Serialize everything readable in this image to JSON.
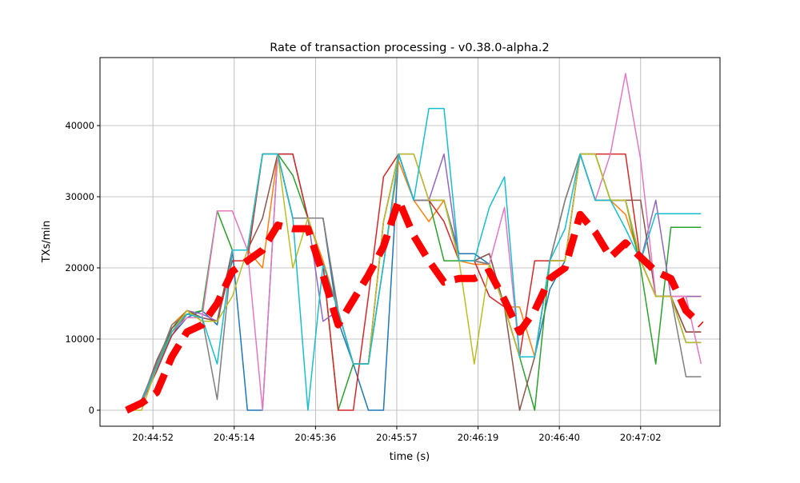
{
  "chart_data": {
    "type": "line",
    "title": "Rate of transaction processing  -  v0.38.0-alpha.2",
    "xlabel": "time (s)",
    "ylabel": "TXs/min",
    "xlim": [
      "20:44:38",
      "20:47:22"
    ],
    "ylim": [
      -2250,
      49550
    ],
    "grid": true,
    "legend": "none",
    "x_ticks": [
      {
        "value": "20:44:52",
        "label": "20:44:52"
      },
      {
        "value": "20:45:13.5",
        "label": "20:45:14"
      },
      {
        "value": "20:45:35",
        "label": "20:45:36"
      },
      {
        "value": "20:45:56.5",
        "label": "20:45:57"
      },
      {
        "value": "20:46:18",
        "label": "20:46:19"
      },
      {
        "value": "20:46:39.5",
        "label": "20:46:40"
      },
      {
        "value": "20:47:01",
        "label": "20:47:02"
      }
    ],
    "y_ticks": [
      {
        "value": 0,
        "label": "0"
      },
      {
        "value": 10000,
        "label": "10000"
      },
      {
        "value": 20000,
        "label": "20000"
      },
      {
        "value": 30000,
        "label": "30000"
      },
      {
        "value": 40000,
        "label": "40000"
      }
    ],
    "x": [
      "20:44:45",
      "20:44:49",
      "20:44:53",
      "20:44:57",
      "20:45:01",
      "20:45:05",
      "20:45:09",
      "20:45:13",
      "20:45:17",
      "20:45:21",
      "20:45:25",
      "20:45:29",
      "20:45:33",
      "20:45:37",
      "20:45:41",
      "20:45:45",
      "20:45:49",
      "20:45:53",
      "20:45:57",
      "20:46:01",
      "20:46:05",
      "20:46:09",
      "20:46:13",
      "20:46:17",
      "20:46:21",
      "20:46:25",
      "20:46:29",
      "20:46:33",
      "20:46:37",
      "20:46:41",
      "20:46:45",
      "20:46:49",
      "20:46:53",
      "20:46:57",
      "20:47:01",
      "20:47:05",
      "20:47:09",
      "20:47:13",
      "20:47:17"
    ],
    "series": [
      {
        "color": "#1f77b4",
        "values": [
          0,
          1000,
          5800,
          10500,
          13000,
          14000,
          12000,
          22500,
          0,
          0,
          36000,
          36000,
          27000,
          27000,
          12500,
          6500,
          0,
          0,
          36000,
          29500,
          29500,
          29500,
          22000,
          22000,
          20500,
          14500,
          7500,
          7500,
          17000,
          21000,
          36000,
          36000,
          29500,
          29500,
          21000,
          16000,
          16000,
          9500,
          9500
        ]
      },
      {
        "color": "#ff7f0e",
        "values": [
          0,
          1500,
          6500,
          12000,
          14000,
          12500,
          12500,
          22500,
          22500,
          20000,
          36000,
          27000,
          27000,
          21000,
          14000,
          6500,
          6500,
          20500,
          35000,
          29500,
          26500,
          29500,
          21000,
          20500,
          20500,
          14500,
          14500,
          7500,
          21000,
          21000,
          36000,
          29500,
          29500,
          27500,
          21000,
          16000,
          16000,
          16000,
          16000
        ]
      },
      {
        "color": "#2ca02c",
        "values": [
          0,
          1200,
          6000,
          11500,
          13500,
          14000,
          28000,
          22500,
          22500,
          36000,
          36000,
          33000,
          27000,
          20500,
          0,
          6500,
          6500,
          26500,
          36000,
          29500,
          29500,
          21000,
          21000,
          21000,
          20500,
          14500,
          7500,
          0,
          21000,
          21000,
          36000,
          36000,
          29500,
          29500,
          20000,
          6500,
          25700,
          25700,
          25700
        ]
      },
      {
        "color": "#d62728",
        "values": [
          0,
          1000,
          5500,
          10500,
          13500,
          13000,
          12500,
          21000,
          21000,
          36000,
          36000,
          36000,
          27000,
          20500,
          0,
          0,
          16000,
          32800,
          36000,
          29500,
          29500,
          26500,
          21000,
          21000,
          16000,
          14500,
          7500,
          21000,
          21000,
          21000,
          36000,
          36000,
          36000,
          36000,
          21000,
          16000,
          16000,
          11000,
          11000
        ]
      },
      {
        "color": "#9467bd",
        "values": [
          0,
          1200,
          6000,
          11000,
          14000,
          13500,
          12500,
          22500,
          22500,
          36000,
          36000,
          27000,
          27000,
          12500,
          14000,
          6500,
          6500,
          26500,
          36000,
          36000,
          29500,
          36000,
          21000,
          21000,
          22000,
          14500,
          7500,
          7500,
          21000,
          21000,
          36000,
          29500,
          29500,
          29500,
          21000,
          29500,
          16000,
          16000,
          16000
        ]
      },
      {
        "color": "#8c564b",
        "values": [
          0,
          1200,
          7000,
          11500,
          14000,
          13000,
          12500,
          22500,
          22500,
          27000,
          36000,
          27000,
          27000,
          27000,
          14000,
          6500,
          6500,
          26500,
          36000,
          29500,
          29500,
          29500,
          21000,
          21000,
          22000,
          14500,
          0,
          7500,
          21000,
          29500,
          36000,
          29500,
          29500,
          29500,
          29500,
          16000,
          16000,
          11000,
          11000
        ]
      },
      {
        "color": "#e377c2",
        "values": [
          0,
          1000,
          6000,
          11000,
          13000,
          13000,
          28000,
          28000,
          22500,
          0,
          36000,
          27000,
          27000,
          20500,
          14000,
          6500,
          6500,
          26500,
          36000,
          29500,
          29500,
          29500,
          21000,
          21000,
          20500,
          28500,
          7500,
          7500,
          21000,
          21000,
          36000,
          29500,
          36000,
          47300,
          35200,
          16000,
          16000,
          16000,
          6500
        ]
      },
      {
        "color": "#7f7f7f",
        "values": [
          0,
          1500,
          6500,
          12000,
          13500,
          13000,
          1500,
          22500,
          22500,
          36000,
          36000,
          27000,
          27000,
          27000,
          14000,
          6500,
          6500,
          20500,
          36000,
          29500,
          29500,
          29500,
          21000,
          21000,
          20500,
          14500,
          7500,
          7500,
          21000,
          29500,
          36000,
          29500,
          29500,
          29500,
          21000,
          16000,
          16000,
          4700,
          4700
        ]
      },
      {
        "color": "#bcbd22",
        "values": [
          0,
          0,
          6000,
          11000,
          14000,
          12500,
          12500,
          16000,
          22500,
          36000,
          36000,
          20000,
          27000,
          20500,
          14000,
          6500,
          6500,
          26500,
          36000,
          36000,
          29500,
          29500,
          21000,
          6500,
          20500,
          14500,
          7500,
          7500,
          21000,
          21000,
          36000,
          36000,
          29500,
          29500,
          21000,
          16000,
          16000,
          9500,
          9500
        ]
      },
      {
        "color": "#17becf",
        "values": [
          0,
          1200,
          6000,
          11000,
          13500,
          13000,
          6500,
          22500,
          22500,
          36000,
          36000,
          27000,
          0,
          20500,
          14000,
          6500,
          6500,
          20500,
          36000,
          29500,
          42400,
          42400,
          21000,
          21000,
          28500,
          32800,
          7500,
          7500,
          21000,
          25500,
          36000,
          29500,
          29500,
          25500,
          21000,
          27600,
          27600,
          27600,
          27600
        ]
      }
    ],
    "mean_series": {
      "color": "#ff0000",
      "style": "dashed",
      "values": [
        0,
        1000,
        2500,
        7500,
        11000,
        12000,
        15000,
        19500,
        21000,
        22500,
        26000,
        25500,
        25500,
        19000,
        12000,
        15500,
        19000,
        23000,
        29500,
        24500,
        21000,
        18000,
        18500,
        18500,
        19500,
        15500,
        11000,
        14000,
        18500,
        20000,
        27500,
        25000,
        21500,
        23500,
        21500,
        19500,
        18500,
        14000,
        12000
      ]
    }
  }
}
